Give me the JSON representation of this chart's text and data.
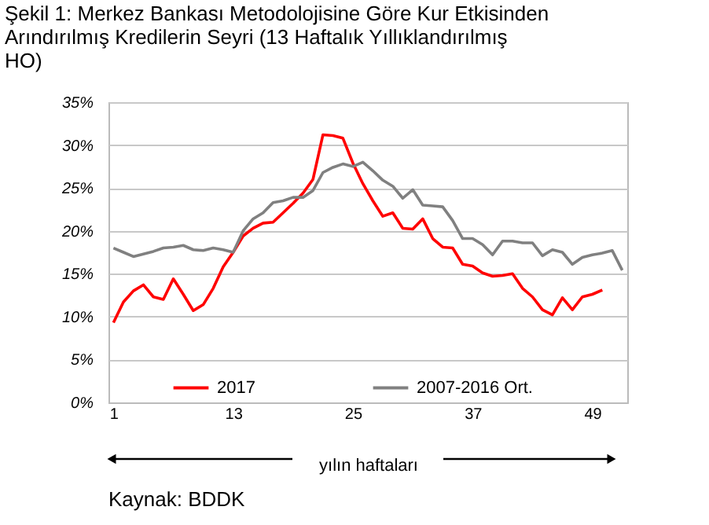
{
  "chart_data": {
    "type": "line",
    "title": "Şekil 1: Merkez Bankası Metodolojisine Göre Kur Etkisinden Arındırılmış Kredilerin Seyri (13 Haftalık Yıllıklandırılmış HO)",
    "xlabel": "yılın haftaları",
    "x": [
      1,
      2,
      3,
      4,
      5,
      6,
      7,
      8,
      9,
      10,
      11,
      12,
      13,
      14,
      15,
      16,
      17,
      18,
      19,
      20,
      21,
      22,
      23,
      24,
      25,
      26,
      27,
      28,
      29,
      30,
      31,
      32,
      33,
      34,
      35,
      36,
      37,
      38,
      39,
      40,
      41,
      42,
      43,
      44,
      45,
      46,
      47,
      48,
      49,
      50,
      51,
      52
    ],
    "series": [
      {
        "name": "2017",
        "color": "#ff0000",
        "values": [
          9.3,
          11.7,
          13.0,
          13.7,
          12.3,
          12.0,
          14.4,
          12.6,
          10.7,
          11.4,
          13.3,
          15.8,
          17.5,
          19.4,
          20.3,
          20.9,
          21.0,
          22.1,
          23.2,
          24.4,
          26.0,
          31.2,
          31.1,
          30.8,
          27.9,
          25.5,
          23.5,
          21.7,
          22.1,
          20.3,
          20.2,
          21.4,
          19.1,
          18.1,
          18.0,
          16.1,
          15.9,
          15.1,
          14.7,
          14.8,
          15.0,
          13.3,
          12.3,
          10.8,
          10.2,
          12.2,
          10.8,
          12.3,
          12.6,
          13.1,
          null,
          null
        ]
      },
      {
        "name": "2007-2016 Ort.",
        "color": "#808080",
        "values": [
          18.0,
          17.5,
          17.0,
          17.3,
          17.6,
          18.0,
          18.1,
          18.3,
          17.8,
          17.7,
          18.0,
          17.8,
          17.5,
          20.0,
          21.4,
          22.1,
          23.3,
          23.5,
          23.9,
          23.9,
          24.7,
          26.8,
          27.4,
          27.8,
          27.5,
          28.0,
          27.0,
          25.9,
          25.2,
          23.8,
          24.8,
          23.0,
          22.9,
          22.8,
          21.2,
          19.1,
          19.1,
          18.4,
          17.2,
          18.8,
          18.8,
          18.6,
          18.6,
          17.1,
          17.8,
          17.5,
          16.1,
          16.9,
          17.2,
          17.4,
          17.7,
          15.4
        ]
      }
    ],
    "xlim": [
      0.5,
      52.5
    ],
    "xticks": [
      1,
      13,
      25,
      37,
      49
    ],
    "ylim": [
      0,
      35
    ],
    "yticks": [
      {
        "value": 0,
        "label": "0%"
      },
      {
        "value": 5,
        "label": "5%"
      },
      {
        "value": 10,
        "label": "10%"
      },
      {
        "value": 15,
        "label": "15%"
      },
      {
        "value": 20,
        "label": "20%"
      },
      {
        "value": 25,
        "label": "25%"
      },
      {
        "value": 30,
        "label": "30%"
      },
      {
        "value": 35,
        "label": "35%"
      }
    ],
    "grid": "y",
    "legend": "bottom",
    "marker": "none",
    "line_style": "solid",
    "annotations": [
      "Kaynak: BDDK"
    ]
  }
}
